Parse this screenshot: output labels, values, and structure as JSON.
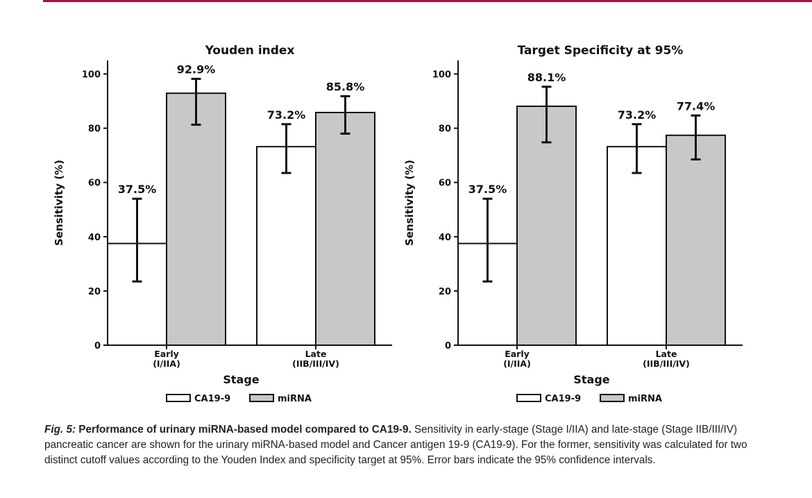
{
  "colors": {
    "accent_rule": "#a3153a",
    "ca19_9": "#ffffff",
    "mirna": "#c8c8c8",
    "stroke": "#111111"
  },
  "chart_data": [
    {
      "type": "bar",
      "title": "Youden index",
      "xlabel": "Stage",
      "ylabel": "Sensitivity (%)",
      "ylim": [
        0,
        105
      ],
      "yticks": [
        0,
        20,
        40,
        60,
        80,
        100
      ],
      "categories": [
        {
          "line1": "Early",
          "line2": "(I/IIA)"
        },
        {
          "line1": "Late",
          "line2": "(IIB/III/IV)"
        }
      ],
      "series": [
        {
          "name": "CA19-9",
          "color": "#ffffff",
          "values": [
            37.5,
            73.2
          ],
          "labels": [
            "37.5%",
            "73.2%"
          ],
          "err_low": [
            23.5,
            63.5
          ],
          "err_high": [
            54.0,
            81.5
          ]
        },
        {
          "name": "miRNA",
          "color": "#c8c8c8",
          "values": [
            92.9,
            85.8
          ],
          "labels": [
            "92.9%",
            "85.8%"
          ],
          "err_low": [
            81.3,
            78.0
          ],
          "err_high": [
            98.2,
            91.8
          ]
        }
      ],
      "legend": "bottom-center",
      "grid": false
    },
    {
      "type": "bar",
      "title": "Target Specificity at 95%",
      "xlabel": "Stage",
      "ylabel": "Sensitivity (%)",
      "ylim": [
        0,
        105
      ],
      "yticks": [
        0,
        20,
        40,
        60,
        80,
        100
      ],
      "categories": [
        {
          "line1": "Early",
          "line2": "(I/IIA)"
        },
        {
          "line1": "Late",
          "line2": "(IIB/III/IV)"
        }
      ],
      "series": [
        {
          "name": "CA19-9",
          "color": "#ffffff",
          "values": [
            37.5,
            73.2
          ],
          "labels": [
            "37.5%",
            "73.2%"
          ],
          "err_low": [
            23.5,
            63.5
          ],
          "err_high": [
            54.0,
            81.5
          ]
        },
        {
          "name": "miRNA",
          "color": "#c8c8c8",
          "values": [
            88.1,
            77.4
          ],
          "labels": [
            "88.1%",
            "77.4%"
          ],
          "err_low": [
            74.8,
            68.5
          ],
          "err_high": [
            95.3,
            84.7
          ]
        }
      ],
      "legend": "bottom-center",
      "grid": false
    }
  ],
  "caption": {
    "fig_label": "Fig. 5:",
    "title": "Performance of urinary miRNA-based model compared to CA19-9.",
    "body": "Sensitivity in early-stage (Stage I/IIA) and late-stage (Stage IIB/III/IV) pancreatic cancer are shown for the urinary miRNA-based model and Cancer antigen 19-9 (CA19-9). For the former, sensitivity was calculated for two distinct cutoff values according to the Youden Index and specificity target at 95%. Error bars indicate the 95% confidence intervals."
  }
}
